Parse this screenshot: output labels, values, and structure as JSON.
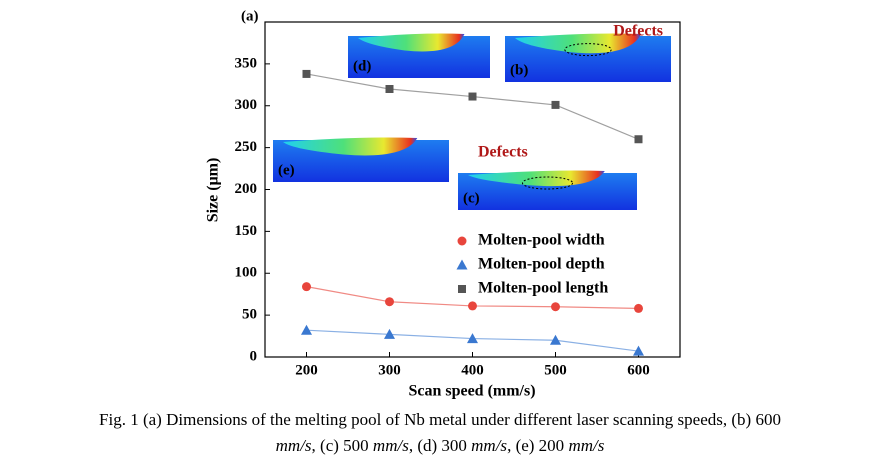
{
  "chart_data": {
    "type": "line",
    "panel_label": "(a)",
    "xlabel": "Scan speed (mm/s)",
    "ylabel": "Size (μm)",
    "x": [
      200,
      300,
      400,
      500,
      600
    ],
    "xlim": [
      150,
      650
    ],
    "xticks": [
      200,
      300,
      400,
      500,
      600
    ],
    "ylim": [
      0,
      400
    ],
    "yticks": [
      0,
      50,
      100,
      150,
      200,
      250,
      300,
      350
    ],
    "legend": "center right",
    "series": [
      {
        "name": "Molten-pool width",
        "color": "#e8453c",
        "line_color": "#f08a84",
        "marker": "circle",
        "values": [
          84,
          66,
          61,
          60,
          58
        ]
      },
      {
        "name": "Molten-pool depth",
        "color": "#3a78d0",
        "line_color": "#8ab0e4",
        "marker": "triangle",
        "values": [
          32,
          27,
          22,
          20,
          7
        ]
      },
      {
        "name": "Molten-pool length",
        "color": "#555555",
        "line_color": "#a0a0a0",
        "marker": "square",
        "values": [
          338,
          320,
          311,
          301,
          260
        ]
      }
    ],
    "insets": [
      {
        "label": "(d)"
      },
      {
        "label": "(b)",
        "annotation": "Defects"
      },
      {
        "label": "(e)"
      },
      {
        "label": "(c)",
        "annotation": "Defects"
      }
    ]
  },
  "caption": {
    "lines": [
      [
        {
          "text": "Fig. 1 (a) Dimensions of the melting pool of Nb metal under different laser scanning speeds, (b) 600"
        }
      ],
      [
        {
          "text": "mm/s",
          "italic": true
        },
        {
          "text": ", (c) 500 "
        },
        {
          "text": "mm/s",
          "italic": true
        },
        {
          "text": ", (d) 300 "
        },
        {
          "text": "mm/s",
          "italic": true
        },
        {
          "text": ", (e) 200 "
        },
        {
          "text": "mm/s",
          "italic": true
        }
      ]
    ]
  }
}
